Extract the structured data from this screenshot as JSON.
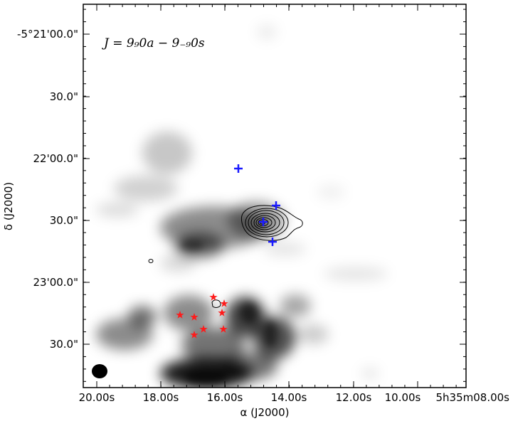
{
  "figure": {
    "annotation": "J = 9₉0a − 9₋₉0s",
    "xlabel": "α (J2000)",
    "ylabel": "δ (J2000)",
    "x_ticks": [
      "20.00s",
      "18.00s",
      "16.00s",
      "14.00s",
      "12.00s",
      "10.00s",
      "5h35m08.00s"
    ],
    "y_ticks": [
      "-5°21'00.0\"",
      "30.0\"",
      "22'00.0\"",
      "30.0\"",
      "23'00.0\"",
      "30.0\""
    ],
    "colors": {
      "map": "#000000",
      "contour": "#000000",
      "plus_markers": "#1a1aff",
      "star_markers": "#ff1a1a",
      "beam": "#000000"
    },
    "marker_symbols": {
      "plus": "+",
      "star": "★"
    }
  }
}
